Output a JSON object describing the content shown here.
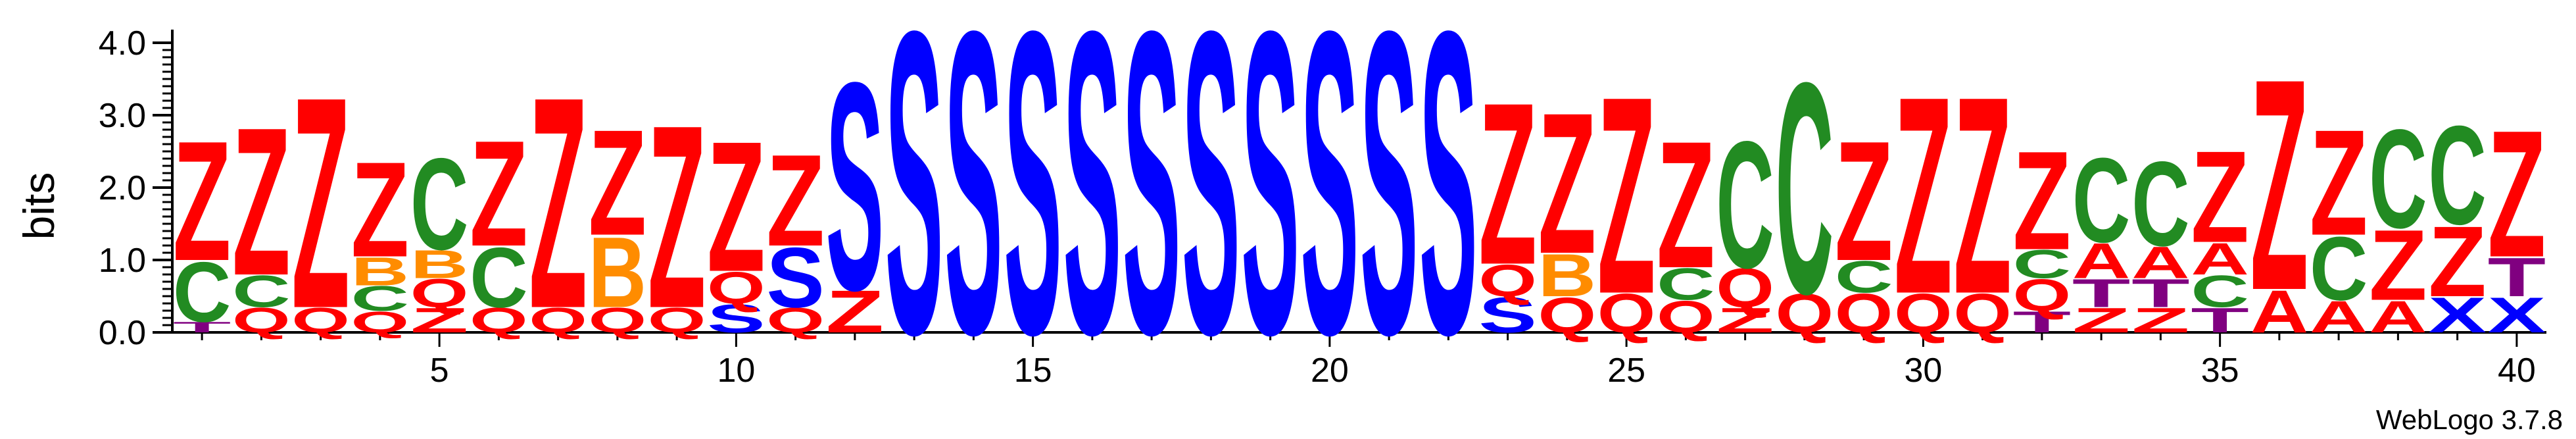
{
  "chart_data": {
    "type": "sequence-logo",
    "ylabel": "bits",
    "ylim": [
      0,
      4
    ],
    "y_ticks": [
      "0.0",
      "1.0",
      "2.0",
      "3.0",
      "4.0"
    ],
    "x_ticks": [
      "5",
      "10",
      "15",
      "20",
      "25",
      "30",
      "35",
      "40"
    ],
    "x_tick_positions": [
      5,
      10,
      15,
      20,
      25,
      30,
      35,
      40
    ],
    "credit": "WebLogo 3.7.8",
    "colors": {
      "Z": "#ff0000",
      "C": "#228b22",
      "Q": "#ff0000",
      "T": "#800080",
      "B": "#ff8c00",
      "S": "#0000ff",
      "A": "#ff0000",
      "X": "#0000ff"
    },
    "positions": [
      {
        "pos": 1,
        "stack": [
          [
            "T",
            0.15
          ],
          [
            "C",
            0.85
          ],
          [
            "Z",
            1.7
          ]
        ]
      },
      {
        "pos": 2,
        "stack": [
          [
            "Q",
            0.35
          ],
          [
            "C",
            0.45
          ],
          [
            "Z",
            2.1
          ]
        ]
      },
      {
        "pos": 3,
        "stack": [
          [
            "Q",
            0.35
          ],
          [
            "Z",
            3.0
          ]
        ]
      },
      {
        "pos": 4,
        "stack": [
          [
            "Q",
            0.3
          ],
          [
            "C",
            0.35
          ],
          [
            "B",
            0.4
          ],
          [
            "Z",
            1.35
          ]
        ]
      },
      {
        "pos": 5,
        "stack": [
          [
            "Z",
            0.35
          ],
          [
            "Q",
            0.4
          ],
          [
            "B",
            0.4
          ],
          [
            "C",
            1.3
          ]
        ]
      },
      {
        "pos": 6,
        "stack": [
          [
            "Q",
            0.35
          ],
          [
            "C",
            0.85
          ],
          [
            "Z",
            1.5
          ]
        ]
      },
      {
        "pos": 7,
        "stack": [
          [
            "Q",
            0.35
          ],
          [
            "Z",
            3.0
          ]
        ]
      },
      {
        "pos": 8,
        "stack": [
          [
            "Q",
            0.35
          ],
          [
            "B",
            1.0
          ],
          [
            "Z",
            1.5
          ]
        ]
      },
      {
        "pos": 9,
        "stack": [
          [
            "Q",
            0.35
          ],
          [
            "Z",
            2.6
          ]
        ]
      },
      {
        "pos": 10,
        "stack": [
          [
            "S",
            0.4
          ],
          [
            "Q",
            0.45
          ],
          [
            "Z",
            1.85
          ]
        ]
      },
      {
        "pos": 11,
        "stack": [
          [
            "Q",
            0.35
          ],
          [
            "S",
            0.85
          ],
          [
            "Z",
            1.3
          ]
        ]
      },
      {
        "pos": 12,
        "stack": [
          [
            "Z",
            0.6
          ],
          [
            "S",
            2.95
          ]
        ]
      },
      {
        "pos": 13,
        "stack": [
          [
            "S",
            4.3
          ]
        ]
      },
      {
        "pos": 14,
        "stack": [
          [
            "S",
            4.3
          ]
        ]
      },
      {
        "pos": 15,
        "stack": [
          [
            "S",
            4.3
          ]
        ]
      },
      {
        "pos": 16,
        "stack": [
          [
            "S",
            4.3
          ]
        ]
      },
      {
        "pos": 17,
        "stack": [
          [
            "S",
            4.3
          ]
        ]
      },
      {
        "pos": 18,
        "stack": [
          [
            "S",
            4.3
          ]
        ]
      },
      {
        "pos": 19,
        "stack": [
          [
            "S",
            4.3
          ]
        ]
      },
      {
        "pos": 20,
        "stack": [
          [
            "S",
            4.3
          ]
        ]
      },
      {
        "pos": 21,
        "stack": [
          [
            "S",
            4.3
          ]
        ]
      },
      {
        "pos": 22,
        "stack": [
          [
            "S",
            4.3
          ]
        ]
      },
      {
        "pos": 23,
        "stack": [
          [
            "S",
            0.5
          ],
          [
            "Q",
            0.45
          ],
          [
            "Z",
            2.3
          ]
        ]
      },
      {
        "pos": 24,
        "stack": [
          [
            "Q",
            0.5
          ],
          [
            "B",
            0.6
          ],
          [
            "Z",
            2.0
          ]
        ]
      },
      {
        "pos": 25,
        "stack": [
          [
            "Q",
            0.55
          ],
          [
            "Z",
            2.8
          ]
        ]
      },
      {
        "pos": 26,
        "stack": [
          [
            "Q",
            0.45
          ],
          [
            "C",
            0.45
          ],
          [
            "Z",
            1.8
          ]
        ]
      },
      {
        "pos": 27,
        "stack": [
          [
            "Z",
            0.35
          ],
          [
            "Q",
            0.55
          ],
          [
            "C",
            1.8
          ]
        ]
      },
      {
        "pos": 28,
        "stack": [
          [
            "Q",
            0.55
          ],
          [
            "C",
            3.0
          ]
        ]
      },
      {
        "pos": 29,
        "stack": [
          [
            "Q",
            0.55
          ],
          [
            "C",
            0.45
          ],
          [
            "Z",
            1.7
          ]
        ]
      },
      {
        "pos": 30,
        "stack": [
          [
            "Q",
            0.55
          ],
          [
            "Z",
            2.8
          ]
        ]
      },
      {
        "pos": 31,
        "stack": [
          [
            "Q",
            0.55
          ],
          [
            "Z",
            2.8
          ]
        ]
      },
      {
        "pos": 32,
        "stack": [
          [
            "T",
            0.3
          ],
          [
            "Q",
            0.45
          ],
          [
            "C",
            0.4
          ],
          [
            "Z",
            1.4
          ]
        ]
      },
      {
        "pos": 33,
        "stack": [
          [
            "Z",
            0.35
          ],
          [
            "T",
            0.4
          ],
          [
            "A",
            0.5
          ],
          [
            "C",
            1.2
          ]
        ]
      },
      {
        "pos": 34,
        "stack": [
          [
            "Z",
            0.35
          ],
          [
            "T",
            0.4
          ],
          [
            "A",
            0.45
          ],
          [
            "C",
            1.2
          ]
        ]
      },
      {
        "pos": 35,
        "stack": [
          [
            "T",
            0.35
          ],
          [
            "C",
            0.45
          ],
          [
            "A",
            0.45
          ],
          [
            "Z",
            1.3
          ]
        ]
      },
      {
        "pos": 36,
        "stack": [
          [
            "A",
            0.6
          ],
          [
            "Z",
            3.0
          ]
        ]
      },
      {
        "pos": 37,
        "stack": [
          [
            "A",
            0.45
          ],
          [
            "C",
            0.9
          ],
          [
            "Z",
            1.5
          ]
        ]
      },
      {
        "pos": 38,
        "stack": [
          [
            "A",
            0.45
          ],
          [
            "Z",
            1.0
          ],
          [
            "C",
            1.4
          ]
        ]
      },
      {
        "pos": 39,
        "stack": [
          [
            "X",
            0.5
          ],
          [
            "Z",
            1.0
          ],
          [
            "C",
            1.4
          ]
        ]
      },
      {
        "pos": 40,
        "stack": [
          [
            "X",
            0.5
          ],
          [
            "T",
            0.55
          ],
          [
            "Z",
            1.8
          ]
        ]
      }
    ]
  }
}
